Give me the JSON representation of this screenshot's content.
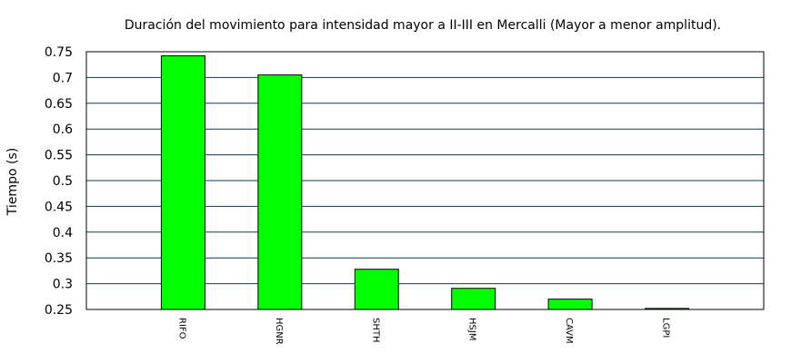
{
  "chart_data": {
    "type": "bar",
    "title": "Duración del movimiento para intensidad mayor a II-III en Mercalli (Mayor a menor amplitud).",
    "xlabel": "",
    "ylabel": "Tiempo (s)",
    "categories": [
      "RIFO",
      "HGNR",
      "SHTH",
      "HSJM",
      "CAVM",
      "LGPI"
    ],
    "values": [
      0.742,
      0.705,
      0.328,
      0.291,
      0.27,
      0.252
    ],
    "ylim": [
      0.25,
      0.75
    ],
    "yticks": [
      "0.25",
      "0.3",
      "0.35",
      "0.4",
      "0.45",
      "0.5",
      "0.55",
      "0.6",
      "0.65",
      "0.7",
      "0.75"
    ],
    "grid": true,
    "legend": "none",
    "colors": {
      "bar_fill": "#00ff00",
      "bar_stroke": "#000000",
      "grid": "#0d3b4f",
      "frame": "#000000"
    }
  }
}
